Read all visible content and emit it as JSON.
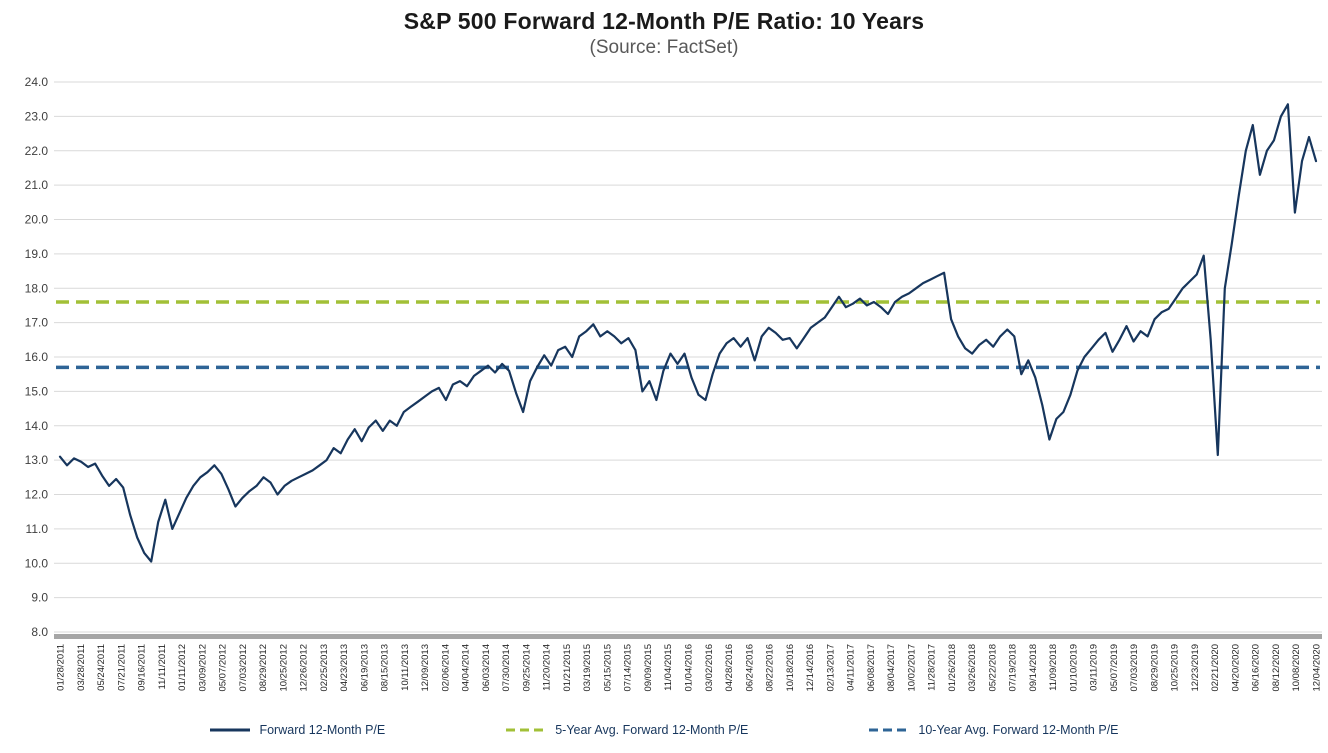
{
  "title": "S&P 500 Forward 12-Month P/E Ratio: 10 Years",
  "subtitle": "(Source: FactSet)",
  "chart_data": {
    "type": "line",
    "title": "S&P 500 Forward 12-Month P/E Ratio: 10 Years",
    "subtitle": "(Source: FactSet)",
    "xlabel": "",
    "ylabel": "",
    "ylim": [
      8.0,
      24.0
    ],
    "ytick_step": 1.0,
    "grid": "horizontal",
    "grid_color": "#d9d9d9",
    "axis_bar_color": "#a6a6a6",
    "legend_position": "bottom",
    "x_labels": [
      "01/28/2011",
      "03/28/2011",
      "05/24/2011",
      "07/21/2011",
      "09/16/2011",
      "11/11/2011",
      "01/11/2012",
      "03/09/2012",
      "05/07/2012",
      "07/03/2012",
      "08/29/2012",
      "10/25/2012",
      "12/26/2012",
      "02/25/2013",
      "04/23/2013",
      "06/19/2013",
      "08/15/2013",
      "10/11/2013",
      "12/09/2013",
      "02/06/2014",
      "04/04/2014",
      "06/03/2014",
      "07/30/2014",
      "09/25/2014",
      "11/20/2014",
      "01/21/2015",
      "03/19/2015",
      "05/15/2015",
      "07/14/2015",
      "09/09/2015",
      "11/04/2015",
      "01/04/2016",
      "03/02/2016",
      "04/28/2016",
      "06/24/2016",
      "08/22/2016",
      "10/18/2016",
      "12/14/2016",
      "02/13/2017",
      "04/11/2017",
      "06/08/2017",
      "08/04/2017",
      "10/02/2017",
      "11/28/2017",
      "01/26/2018",
      "03/26/2018",
      "05/22/2018",
      "07/19/2018",
      "09/14/2018",
      "11/09/2018",
      "01/10/2019",
      "03/11/2019",
      "05/07/2019",
      "07/03/2019",
      "08/29/2019",
      "10/25/2019",
      "12/23/2019",
      "02/21/2020",
      "04/20/2020",
      "06/16/2020",
      "08/12/2020",
      "10/08/2020",
      "12/04/2020"
    ],
    "series": [
      {
        "name": "Forward 12-Month P/E",
        "color": "#17365d",
        "values": [
          13.1,
          12.85,
          13.05,
          12.95,
          12.8,
          12.9,
          12.55,
          12.25,
          12.45,
          12.2,
          11.4,
          10.75,
          10.3,
          10.05,
          11.2,
          11.85,
          11.0,
          11.45,
          11.9,
          12.25,
          12.5,
          12.65,
          12.85,
          12.6,
          12.15,
          11.65,
          11.9,
          12.1,
          12.25,
          12.5,
          12.35,
          12.0,
          12.25,
          12.4,
          12.5,
          12.6,
          12.7,
          12.85,
          13.0,
          13.35,
          13.2,
          13.6,
          13.9,
          13.55,
          13.95,
          14.15,
          13.85,
          14.15,
          14.0,
          14.4,
          14.55,
          14.7,
          14.85,
          15.0,
          15.1,
          14.75,
          15.2,
          15.3,
          15.15,
          15.45,
          15.6,
          15.75,
          15.55,
          15.8,
          15.6,
          14.95,
          14.4,
          15.3,
          15.7,
          16.05,
          15.75,
          16.2,
          16.3,
          16.0,
          16.6,
          16.75,
          16.95,
          16.6,
          16.75,
          16.6,
          16.4,
          16.55,
          16.2,
          15.0,
          15.3,
          14.75,
          15.6,
          16.1,
          15.8,
          16.1,
          15.4,
          14.9,
          14.75,
          15.5,
          16.1,
          16.4,
          16.55,
          16.3,
          16.55,
          15.9,
          16.6,
          16.85,
          16.7,
          16.5,
          16.55,
          16.25,
          16.55,
          16.85,
          17.0,
          17.15,
          17.45,
          17.75,
          17.45,
          17.55,
          17.7,
          17.5,
          17.6,
          17.45,
          17.25,
          17.6,
          17.75,
          17.85,
          18.0,
          18.15,
          18.25,
          18.35,
          18.45,
          17.1,
          16.6,
          16.25,
          16.1,
          16.35,
          16.5,
          16.3,
          16.6,
          16.8,
          16.6,
          15.5,
          15.9,
          15.4,
          14.6,
          13.6,
          14.2,
          14.4,
          14.9,
          15.6,
          16.0,
          16.25,
          16.5,
          16.7,
          16.15,
          16.5,
          16.9,
          16.45,
          16.75,
          16.6,
          17.1,
          17.3,
          17.4,
          17.7,
          18.0,
          18.2,
          18.4,
          18.95,
          16.5,
          13.15,
          18.0,
          19.3,
          20.7,
          22.0,
          22.75,
          21.3,
          22.0,
          22.3,
          23.0,
          23.35,
          20.2,
          21.7,
          22.4,
          21.7
        ]
      }
    ],
    "reference_lines": [
      {
        "name": "5-Year Avg. Forward 12-Month P/E",
        "value": 17.6,
        "color": "#a2c037",
        "style": "dashed"
      },
      {
        "name": "10-Year Avg. Forward 12-Month P/E",
        "value": 15.7,
        "color": "#2e6496",
        "style": "dashed"
      }
    ],
    "legend": [
      "Forward 12-Month P/E",
      "5-Year Avg. Forward 12-Month P/E",
      "10-Year Avg. Forward 12-Month P/E"
    ]
  }
}
